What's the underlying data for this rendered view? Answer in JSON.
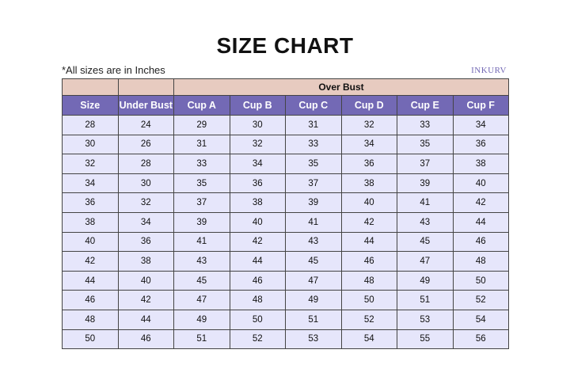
{
  "title": "SIZE CHART",
  "note": "*All sizes are in Inches",
  "brand": "INKURV",
  "colors": {
    "group_header": "#e7cbc0",
    "header": "#7369b5",
    "row": "#e6e6fb"
  },
  "table": {
    "group_label": "Over Bust",
    "headers": [
      "Size",
      "Under Bust",
      "Cup A",
      "Cup B",
      "Cup C",
      "Cup D",
      "Cup E",
      "Cup F"
    ],
    "rows": [
      [
        "28",
        "24",
        "29",
        "30",
        "31",
        "32",
        "33",
        "34"
      ],
      [
        "30",
        "26",
        "31",
        "32",
        "33",
        "34",
        "35",
        "36"
      ],
      [
        "32",
        "28",
        "33",
        "34",
        "35",
        "36",
        "37",
        "38"
      ],
      [
        "34",
        "30",
        "35",
        "36",
        "37",
        "38",
        "39",
        "40"
      ],
      [
        "36",
        "32",
        "37",
        "38",
        "39",
        "40",
        "41",
        "42"
      ],
      [
        "38",
        "34",
        "39",
        "40",
        "41",
        "42",
        "43",
        "44"
      ],
      [
        "40",
        "36",
        "41",
        "42",
        "43",
        "44",
        "45",
        "46"
      ],
      [
        "42",
        "38",
        "43",
        "44",
        "45",
        "46",
        "47",
        "48"
      ],
      [
        "44",
        "40",
        "45",
        "46",
        "47",
        "48",
        "49",
        "50"
      ],
      [
        "46",
        "42",
        "47",
        "48",
        "49",
        "50",
        "51",
        "52"
      ],
      [
        "48",
        "44",
        "49",
        "50",
        "51",
        "52",
        "53",
        "54"
      ],
      [
        "50",
        "46",
        "51",
        "52",
        "53",
        "54",
        "55",
        "56"
      ]
    ]
  }
}
